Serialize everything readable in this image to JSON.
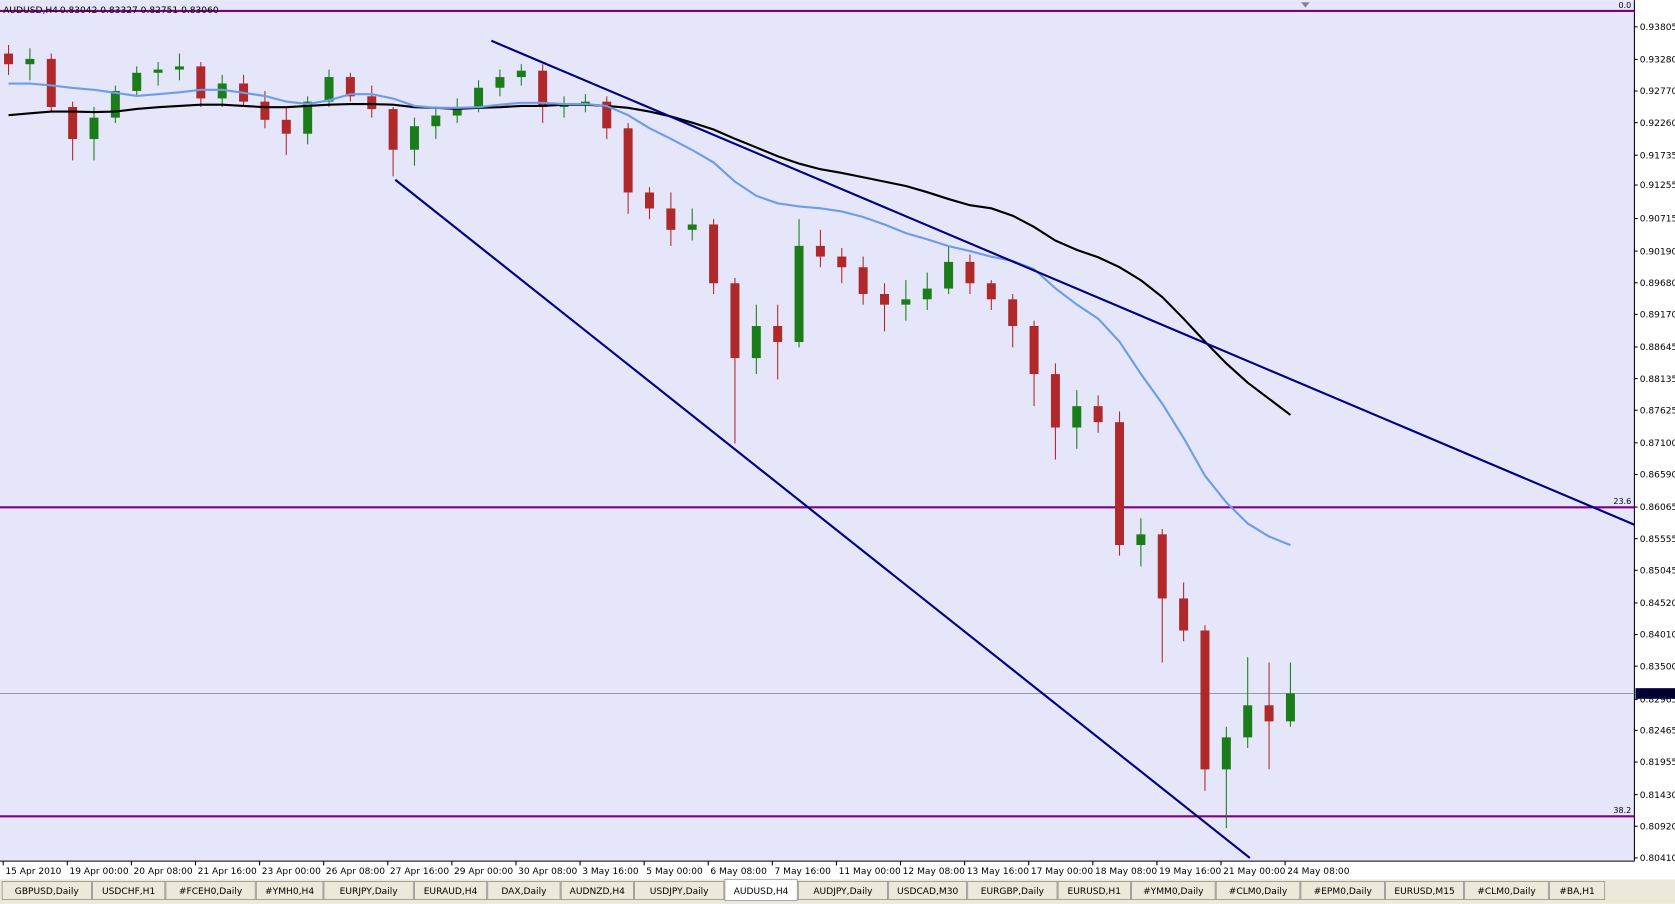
{
  "header": {
    "title": "AUDUSD,H4",
    "quote": "0.83042 0.83327 0.82751 0.83060"
  },
  "chart_data": {
    "type": "candlestick",
    "up_color": "#1a7d1a",
    "down_color": "#b0282a",
    "xlim": [
      -0.4,
      76.1
    ],
    "ylim": [
      0.80358,
      0.94235
    ],
    "yticks": [
      0.93805,
      {
        "value": 0.9328,
        "label": "0.93280"
      },
      {
        "value": 0.9277,
        "label": "0.92770"
      },
      {
        "value": 0.9226,
        "label": "0.92260"
      },
      0.91735,
      0.91255,
      0.90715,
      {
        "value": 0.9019,
        "label": "0.90190"
      },
      {
        "value": 0.8968,
        "label": "0.89680"
      },
      {
        "value": 0.8917,
        "label": "0.89170"
      },
      0.88645,
      0.88135,
      0.87625,
      {
        "value": 0.871,
        "label": "0.87100"
      },
      {
        "value": 0.8659,
        "label": "0.86590"
      },
      0.86065,
      0.85555,
      0.85045,
      {
        "value": 0.8452,
        "label": "0.84520"
      },
      {
        "value": 0.8401,
        "label": "0.84010"
      },
      {
        "value": 0.835,
        "label": "0.83500"
      },
      0.82965,
      0.82465,
      0.81955,
      {
        "value": 0.8143,
        "label": "0.81430"
      },
      {
        "value": 0.8092,
        "label": "0.80920"
      },
      {
        "value": 0.8041,
        "label": "0.80410"
      }
    ],
    "xticks": [
      {
        "value": 0,
        "label": "15 Apr 2010"
      },
      {
        "value": 3,
        "label": "19 Apr 00:00"
      },
      {
        "value": 6,
        "label": "20 Apr 08:00"
      },
      {
        "value": 9,
        "label": "21 Apr 16:00"
      },
      {
        "value": 12,
        "label": "23 Apr 00:00"
      },
      {
        "value": 15,
        "label": "26 Apr 08:00"
      },
      {
        "value": 18,
        "label": "27 Apr 16:00"
      },
      {
        "value": 21,
        "label": "29 Apr 00:00"
      },
      {
        "value": 24,
        "label": "30 Apr 08:00"
      },
      {
        "value": 27,
        "label": "3 May 16:00"
      },
      {
        "value": 30,
        "label": "5 May 00:00"
      },
      {
        "value": 33,
        "label": "6 May 08:00"
      },
      {
        "value": 36,
        "label": "7 May 16:00"
      },
      {
        "value": 39,
        "label": "11 May 00:00"
      },
      {
        "value": 42,
        "label": "12 May 08:00"
      },
      {
        "value": 45,
        "label": "13 May 16:00"
      },
      {
        "value": 48,
        "label": "17 May 00:00"
      },
      {
        "value": 51,
        "label": "18 May 08:00"
      },
      {
        "value": 54,
        "label": "19 May 16:00"
      },
      {
        "value": 57,
        "label": "21 May 00:00"
      },
      {
        "value": 60,
        "label": "24 May 08:00"
      }
    ],
    "ohlc": [
      [
        0.93374,
        0.93512,
        0.9303,
        0.93202
      ],
      [
        0.93202,
        0.9346,
        0.92943,
        0.93288
      ],
      [
        0.93288,
        0.93374,
        0.92427,
        0.92513
      ],
      [
        0.92513,
        0.92599,
        0.91652,
        0.91996
      ],
      [
        0.91996,
        0.92513,
        0.91652,
        0.92341
      ],
      [
        0.92341,
        0.92857,
        0.92255,
        0.92771
      ],
      [
        0.92771,
        0.93167,
        0.92685,
        0.93064
      ],
      [
        0.93064,
        0.93236,
        0.92857,
        0.93116
      ],
      [
        0.93116,
        0.93374,
        0.92943,
        0.93167
      ],
      [
        0.93167,
        0.93236,
        0.92513,
        0.92651
      ],
      [
        0.92651,
        0.9303,
        0.92513,
        0.92892
      ],
      [
        0.92892,
        0.9303,
        0.92513,
        0.92599
      ],
      [
        0.92599,
        0.92771,
        0.92169,
        0.92306
      ],
      [
        0.92306,
        0.92513,
        0.91738,
        0.92082
      ],
      [
        0.92082,
        0.92685,
        0.9191,
        0.92599
      ],
      [
        0.92599,
        0.93116,
        0.92513,
        0.92995
      ],
      [
        0.92995,
        0.93064,
        0.92599,
        0.92685
      ],
      [
        0.92685,
        0.92857,
        0.92341,
        0.92479
      ],
      [
        0.92479,
        0.92513,
        0.91394,
        0.91824
      ],
      [
        0.91824,
        0.92341,
        0.91566,
        0.92203
      ],
      [
        0.92203,
        0.92513,
        0.91996,
        0.92375
      ],
      [
        0.92375,
        0.92651,
        0.92255,
        0.92513
      ],
      [
        0.92513,
        0.92943,
        0.92427,
        0.92823
      ],
      [
        0.92823,
        0.93116,
        0.92685,
        0.92995
      ],
      [
        0.92995,
        0.93202,
        0.92857,
        0.93098
      ],
      [
        0.93098,
        0.93202,
        0.92255,
        0.92513
      ],
      [
        0.92513,
        0.92685,
        0.92341,
        0.92547
      ],
      [
        0.92547,
        0.9272,
        0.92427,
        0.92599
      ],
      [
        0.92599,
        0.92685,
        0.91996,
        0.92169
      ],
      [
        0.92169,
        0.92255,
        0.90791,
        0.91135
      ],
      [
        0.91135,
        0.91221,
        0.90705,
        0.90877
      ],
      [
        0.90877,
        0.91135,
        0.90274,
        0.90533
      ],
      [
        0.90533,
        0.90877,
        0.9036,
        0.90619
      ],
      [
        0.90619,
        0.90705,
        0.89499,
        0.89672
      ],
      [
        0.89672,
        0.89758,
        0.87089,
        0.88466
      ],
      [
        0.88466,
        0.89327,
        0.88208,
        0.88983
      ],
      [
        0.88983,
        0.89327,
        0.88122,
        0.88725
      ],
      [
        0.88725,
        0.90705,
        0.88638,
        0.90274
      ],
      [
        0.90274,
        0.90533,
        0.8993,
        0.90102
      ],
      [
        0.90102,
        0.9024,
        0.89672,
        0.8993
      ],
      [
        0.8993,
        0.90102,
        0.89327,
        0.89499
      ],
      [
        0.89499,
        0.89672,
        0.88897,
        0.89327
      ],
      [
        0.89327,
        0.89723,
        0.89069,
        0.89413
      ],
      [
        0.89413,
        0.89844,
        0.89241,
        0.89586
      ],
      [
        0.89586,
        0.90274,
        0.89499,
        0.90016
      ],
      [
        0.90016,
        0.90137,
        0.89499,
        0.89672
      ],
      [
        0.89672,
        0.89723,
        0.89241,
        0.89413
      ],
      [
        0.89413,
        0.89499,
        0.88638,
        0.88983
      ],
      [
        0.88983,
        0.89069,
        0.87691,
        0.88208
      ],
      [
        0.88208,
        0.8838,
        0.8683,
        0.87347
      ],
      [
        0.87347,
        0.8795,
        0.87003,
        0.87691
      ],
      [
        0.87691,
        0.87864,
        0.87261,
        0.87433
      ],
      [
        0.87433,
        0.87605,
        0.85281,
        0.85453
      ],
      [
        0.85453,
        0.85883,
        0.85108,
        0.85625
      ],
      [
        0.85625,
        0.85711,
        0.83559,
        0.84592
      ],
      [
        0.84592,
        0.8485,
        0.83903,
        0.84075
      ],
      [
        0.84075,
        0.84161,
        0.81492,
        0.81837
      ],
      [
        0.81837,
        0.82525,
        0.80889,
        0.82353
      ],
      [
        0.82353,
        0.83645,
        0.82181,
        0.8287
      ],
      [
        0.8287,
        0.83559,
        0.81837,
        0.82611
      ],
      [
        0.82611,
        0.83559,
        0.82525,
        0.8306
      ]
    ],
    "lines": [
      {
        "color": "#000000",
        "values": [
          0.9238,
          0.9241,
          0.9244,
          0.9244,
          0.9243,
          0.9244,
          0.9248,
          0.9251,
          0.9253,
          0.9255,
          0.9255,
          0.9253,
          0.9251,
          0.9251,
          0.9253,
          0.9255,
          0.9256,
          0.9256,
          0.9255,
          0.9251,
          0.925,
          0.9248,
          0.925,
          0.9251,
          0.9253,
          0.9253,
          0.9255,
          0.9255,
          0.9253,
          0.925,
          0.9244,
          0.9236,
          0.9226,
          0.9215,
          0.92,
          0.9186,
          0.9172,
          0.916,
          0.9151,
          0.9145,
          0.9138,
          0.9131,
          0.9124,
          0.9114,
          0.9103,
          0.9093,
          0.9088,
          0.9076,
          0.9058,
          0.9036,
          0.9021,
          0.9009,
          0.8993,
          0.8972,
          0.8945,
          0.891,
          0.8873,
          0.8838,
          0.8807,
          0.8781,
          0.8755
        ]
      },
      {
        "color": "#6e9ce6",
        "values": [
          0.9289,
          0.9289,
          0.9286,
          0.9282,
          0.9279,
          0.9274,
          0.9269,
          0.9272,
          0.9275,
          0.9279,
          0.9279,
          0.9274,
          0.9269,
          0.926,
          0.9256,
          0.9262,
          0.9272,
          0.9272,
          0.9265,
          0.9253,
          0.925,
          0.925,
          0.9251,
          0.9255,
          0.9258,
          0.9258,
          0.9256,
          0.9256,
          0.9253,
          0.9238,
          0.9217,
          0.92,
          0.9182,
          0.9162,
          0.9131,
          0.9108,
          0.9096,
          0.9091,
          0.9088,
          0.9083,
          0.9074,
          0.9062,
          0.9048,
          0.9038,
          0.9027,
          0.9019,
          0.901,
          0.9003,
          0.899,
          0.8959,
          0.8933,
          0.891,
          0.8873,
          0.8821,
          0.8773,
          0.8718,
          0.8657,
          0.8614,
          0.858,
          0.8559,
          0.8545
        ]
      }
    ],
    "trendlines": [
      {
        "color": "#000080",
        "x": [
          22.6,
          76.1
        ],
        "y": [
          0.9358,
          0.8578
        ]
      },
      {
        "color": "#000080",
        "x": [
          18.1,
          58.1
        ],
        "y": [
          0.9134,
          0.8041
        ]
      }
    ],
    "levels": [
      {
        "label": "0.0",
        "value": 0.9406,
        "color": "#800080"
      },
      {
        "label": "23.6",
        "value": 0.8606,
        "color": "#800080"
      },
      {
        "label": "38.2",
        "value": 0.8108,
        "color": "#800080"
      }
    ],
    "current_price": {
      "value": 0.8306,
      "label": "0.83060"
    }
  },
  "tabs": [
    "GBPUSD,Daily",
    "USDCHF,H1",
    "#FCEH0,Daily",
    "#YMH0,H4",
    "EURJPY,Daily",
    "EURAUD,H4",
    "DAX,Daily",
    "AUDNZD,H4",
    "USDJPY,Daily",
    "AUDUSD,H4",
    "AUDJPY,Daily",
    "USDCAD,M30",
    "EURGBP,Daily",
    "EURUSD,H1",
    "#YMM0,Daily",
    "#CLM0,Daily",
    "#EPM0,Daily",
    "EURUSD,M15",
    "#CLM0,Daily",
    "#BA,H1"
  ],
  "active_tab": 9
}
